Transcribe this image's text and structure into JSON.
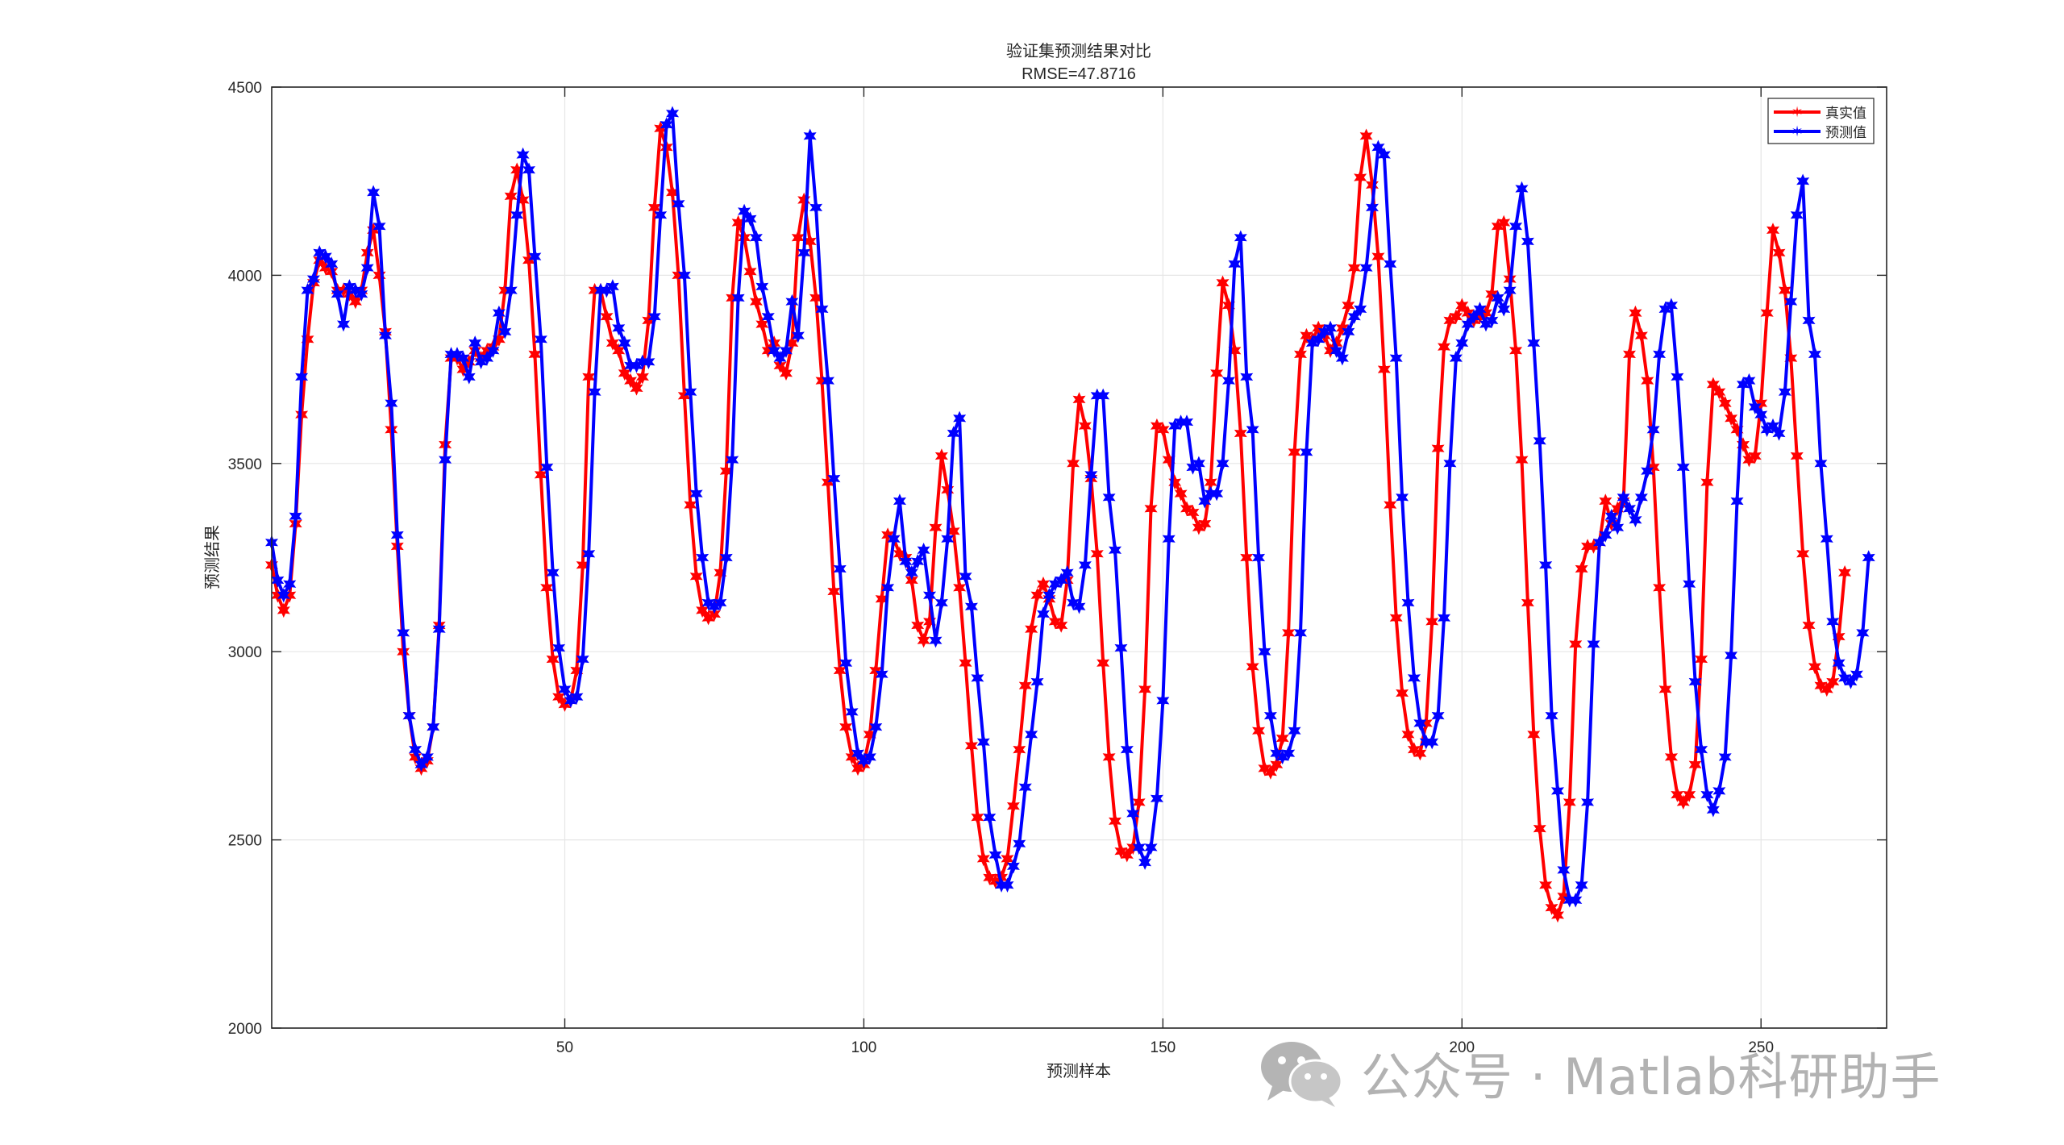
{
  "chart_data": {
    "type": "line",
    "title": "验证集预测结果对比",
    "subtitle": "RMSE=47.8716",
    "xlabel": "预测样本",
    "ylabel": "预测结果",
    "xlim": [
      1,
      271
    ],
    "ylim": [
      2000,
      4500
    ],
    "xticks": [
      50,
      100,
      150,
      200,
      250
    ],
    "yticks": [
      2000,
      2500,
      3000,
      3500,
      4000,
      4500
    ],
    "grid": true,
    "legend_position": "top-right",
    "series": [
      {
        "name": "真实值",
        "color": "#ff0000",
        "values": [
          3230,
          3150,
          3110,
          3150,
          3340,
          3630,
          3830,
          3980,
          4040,
          4020,
          4010,
          3960,
          3960,
          3950,
          3930,
          3960,
          4060,
          4120,
          4000,
          3850,
          3590,
          3280,
          3000,
          2830,
          2720,
          2690,
          2710,
          2800,
          3070,
          3550,
          3780,
          3780,
          3750,
          3770,
          3800,
          3780,
          3800,
          3810,
          3830,
          3960,
          4210,
          4280,
          4200,
          4040,
          3790,
          3470,
          3170,
          2980,
          2880,
          2860,
          2870,
          2950,
          3230,
          3730,
          3960,
          3960,
          3890,
          3820,
          3800,
          3740,
          3720,
          3700,
          3730,
          3880,
          4180,
          4390,
          4340,
          4220,
          4000,
          3680,
          3390,
          3200,
          3110,
          3090,
          3100,
          3210,
          3480,
          3940,
          4140,
          4100,
          4010,
          3930,
          3870,
          3800,
          3820,
          3760,
          3740,
          3820,
          4100,
          4200,
          4090,
          3940,
          3720,
          3450,
          3160,
          2950,
          2800,
          2720,
          2690,
          2700,
          2780,
          2950,
          3140,
          3310,
          3300,
          3260,
          3250,
          3190,
          3070,
          3030,
          3080,
          3330,
          3520,
          3430,
          3320,
          3170,
          2970,
          2750,
          2560,
          2450,
          2400,
          2390,
          2400,
          2450,
          2590,
          2740,
          2910,
          3060,
          3150,
          3180,
          3140,
          3080,
          3070,
          3190,
          3500,
          3670,
          3600,
          3460,
          3260,
          2970,
          2720,
          2550,
          2470,
          2460,
          2480,
          2600,
          2900,
          3380,
          3600,
          3590,
          3510,
          3450,
          3420,
          3380,
          3370,
          3330,
          3340,
          3450,
          3740,
          3980,
          3920,
          3800,
          3580,
          3250,
          2960,
          2790,
          2690,
          2680,
          2700,
          2770,
          3050,
          3530,
          3790,
          3840,
          3830,
          3860,
          3840,
          3800,
          3820,
          3860,
          3920,
          4020,
          4260,
          4370,
          4240,
          4050,
          3750,
          3390,
          3090,
          2890,
          2780,
          2740,
          2730,
          2810,
          3080,
          3540,
          3810,
          3880,
          3890,
          3920,
          3900,
          3880,
          3890,
          3900,
          3950,
          4130,
          4140,
          3990,
          3800,
          3510,
          3130,
          2780,
          2530,
          2380,
          2320,
          2300,
          2350,
          2600,
          3020,
          3220,
          3280,
          3280,
          3290,
          3400,
          3340,
          3380,
          3400,
          3790,
          3900,
          3840,
          3720,
          3490,
          3170,
          2900,
          2720,
          2620,
          2600,
          2620,
          2700,
          2980,
          3450,
          3710,
          3690,
          3660,
          3620,
          3590,
          3550,
          3510,
          3520,
          3660,
          3900,
          4120,
          4060,
          3960,
          3780,
          3520,
          3260,
          3070,
          2960,
          2910,
          2900,
          2920,
          3040,
          3210
        ]
      },
      {
        "name": "预测值",
        "color": "#0000ff",
        "values": [
          3290,
          3190,
          3150,
          3180,
          3360,
          3730,
          3960,
          3990,
          4060,
          4050,
          4030,
          3950,
          3870,
          3970,
          3960,
          3950,
          4020,
          4220,
          4130,
          3840,
          3660,
          3310,
          3050,
          2830,
          2740,
          2700,
          2720,
          2800,
          3060,
          3510,
          3790,
          3790,
          3780,
          3730,
          3820,
          3770,
          3780,
          3800,
          3900,
          3850,
          3960,
          4160,
          4320,
          4280,
          4050,
          3830,
          3490,
          3210,
          3010,
          2900,
          2870,
          2880,
          2980,
          3260,
          3690,
          3960,
          3960,
          3970,
          3860,
          3820,
          3760,
          3760,
          3770,
          3770,
          3890,
          4160,
          4400,
          4430,
          4190,
          4000,
          3690,
          3420,
          3250,
          3130,
          3120,
          3130,
          3250,
          3510,
          3940,
          4170,
          4150,
          4100,
          3970,
          3890,
          3800,
          3780,
          3800,
          3930,
          3840,
          4060,
          4370,
          4180,
          3910,
          3720,
          3460,
          3220,
          2970,
          2840,
          2730,
          2710,
          2720,
          2800,
          2940,
          3170,
          3300,
          3400,
          3240,
          3210,
          3240,
          3270,
          3150,
          3030,
          3130,
          3300,
          3580,
          3620,
          3200,
          3120,
          2930,
          2760,
          2560,
          2460,
          2380,
          2380,
          2430,
          2490,
          2640,
          2780,
          2920,
          3100,
          3150,
          3180,
          3190,
          3210,
          3130,
          3120,
          3230,
          3470,
          3680,
          3680,
          3410,
          3270,
          3010,
          2740,
          2570,
          2480,
          2440,
          2480,
          2610,
          2870,
          3300,
          3600,
          3610,
          3610,
          3490,
          3500,
          3400,
          3420,
          3420,
          3500,
          3720,
          4030,
          4100,
          3730,
          3590,
          3250,
          3000,
          2830,
          2730,
          2720,
          2730,
          2790,
          3050,
          3530,
          3820,
          3830,
          3850,
          3860,
          3800,
          3780,
          3850,
          3890,
          3910,
          4020,
          4180,
          4340,
          4320,
          4030,
          3780,
          3410,
          3130,
          2930,
          2810,
          2760,
          2760,
          2830,
          3090,
          3500,
          3780,
          3820,
          3870,
          3890,
          3910,
          3870,
          3880,
          3940,
          3910,
          3960,
          4130,
          4230,
          4090,
          3820,
          3560,
          3230,
          2830,
          2630,
          2420,
          2340,
          2340,
          2380,
          2600,
          3020,
          3290,
          3310,
          3360,
          3330,
          3410,
          3380,
          3350,
          3410,
          3480,
          3590,
          3790,
          3910,
          3920,
          3730,
          3490,
          3180,
          2920,
          2740,
          2620,
          2580,
          2630,
          2720,
          2990,
          3400,
          3710,
          3720,
          3650,
          3630,
          3590,
          3600,
          3580,
          3690,
          3930,
          4160,
          4250,
          3880,
          3790,
          3500,
          3300,
          3080,
          2970,
          2930,
          2920,
          2940,
          3050,
          3250
        ]
      }
    ]
  },
  "watermark": {
    "icon": "wechat-icon",
    "text": "公众号 · Matlab科研助手"
  }
}
